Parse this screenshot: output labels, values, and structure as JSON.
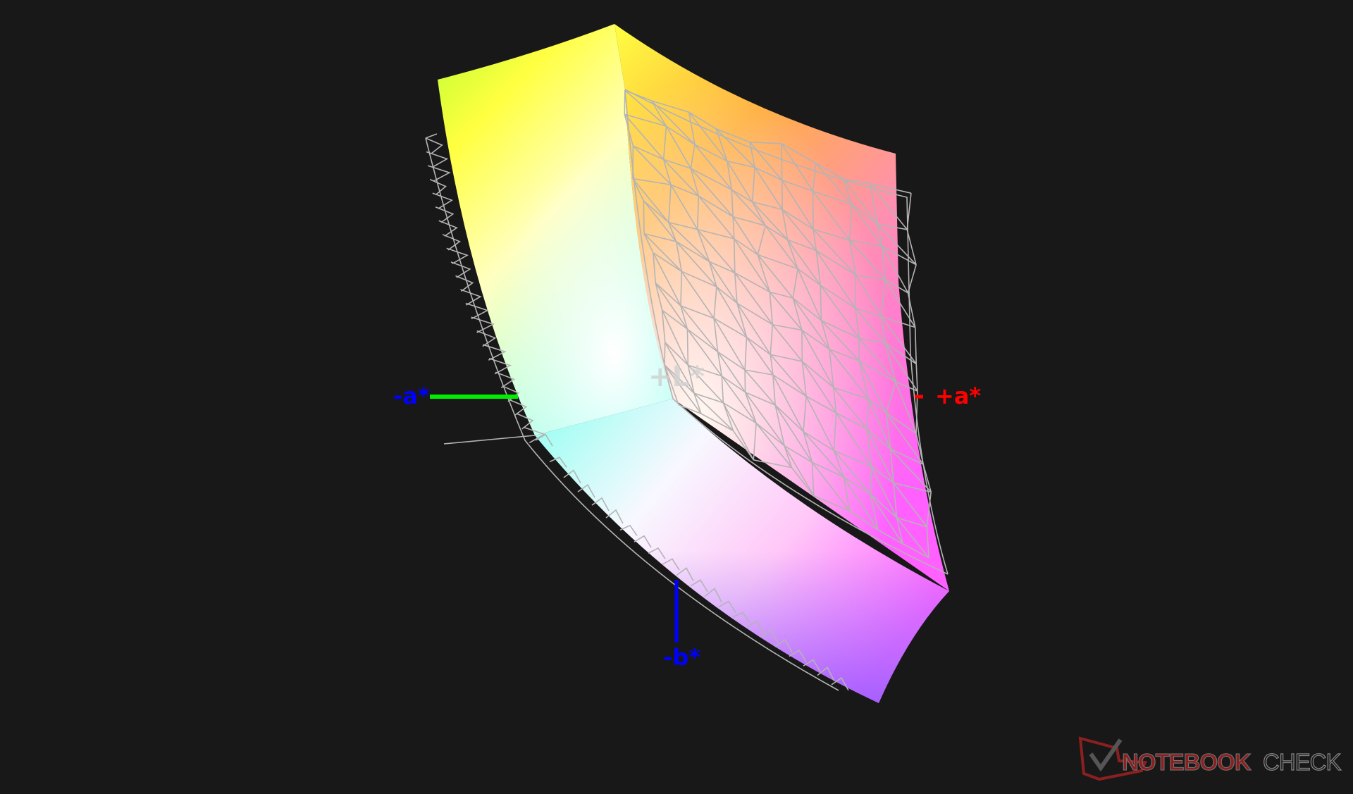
{
  "axes": {
    "minus_a": {
      "label": "-a*",
      "color": "#0000ff",
      "line_color": "#00ee00"
    },
    "plus_a": {
      "label": "+a*",
      "color": "#ff0000"
    },
    "minus_b": {
      "label": "-b*",
      "color": "#0000ff"
    },
    "plus_l": {
      "label": "+L*",
      "color": "#d0d0d0"
    }
  },
  "wireframe_color": "#b4b4b4",
  "background": "#181818",
  "watermark": {
    "text_a": "NOTEBOOK",
    "text_b": "CHECK"
  }
}
